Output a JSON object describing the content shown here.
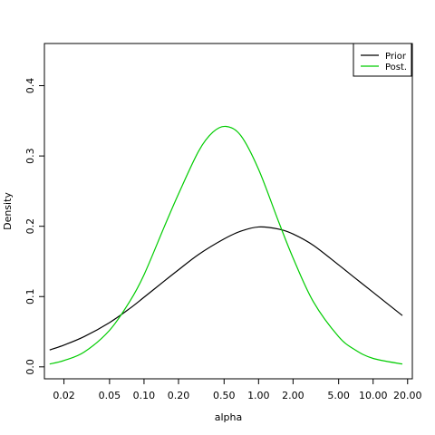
{
  "chart_data": {
    "type": "line",
    "title": "",
    "xlabel": "alpha",
    "ylabel": "Density",
    "x_scale": "log",
    "xlim": [
      0.0135,
      22.0
    ],
    "ylim": [
      -0.017,
      0.46
    ],
    "x_ticks": [
      0.02,
      0.05,
      0.1,
      0.2,
      0.5,
      1.0,
      2.0,
      5.0,
      10.0,
      20.0
    ],
    "x_tick_labels": [
      "0.02",
      "0.05",
      "0.10",
      "0.20",
      "0.50",
      "1.00",
      "2.00",
      "5.00",
      "10.00",
      "20.00"
    ],
    "y_ticks": [
      0.0,
      0.1,
      0.2,
      0.3,
      0.4
    ],
    "y_tick_labels": [
      "0.0",
      "0.1",
      "0.2",
      "0.3",
      "0.4"
    ],
    "grid": false,
    "legend_position": "top-right",
    "series": [
      {
        "name": "Prior",
        "color": "#000000",
        "x": [
          0.015,
          0.02,
          0.03,
          0.05,
          0.075,
          0.1,
          0.15,
          0.2,
          0.3,
          0.5,
          0.7,
          1.0,
          1.5,
          2.0,
          3.0,
          5.0,
          7.0,
          10.0,
          18.0
        ],
        "y": [
          0.024,
          0.031,
          0.043,
          0.063,
          0.083,
          0.099,
          0.122,
          0.138,
          0.16,
          0.182,
          0.193,
          0.199,
          0.196,
          0.189,
          0.173,
          0.145,
          0.126,
          0.106,
          0.073
        ]
      },
      {
        "name": "Post.",
        "color": "#00cc00",
        "x": [
          0.015,
          0.02,
          0.03,
          0.05,
          0.075,
          0.1,
          0.15,
          0.2,
          0.3,
          0.4,
          0.52,
          0.7,
          1.0,
          1.5,
          2.0,
          3.0,
          5.0,
          7.0,
          10.0,
          18.0
        ],
        "y": [
          0.004,
          0.009,
          0.021,
          0.052,
          0.093,
          0.131,
          0.199,
          0.246,
          0.307,
          0.334,
          0.342,
          0.329,
          0.281,
          0.206,
          0.155,
          0.093,
          0.043,
          0.024,
          0.012,
          0.004
        ]
      }
    ]
  }
}
